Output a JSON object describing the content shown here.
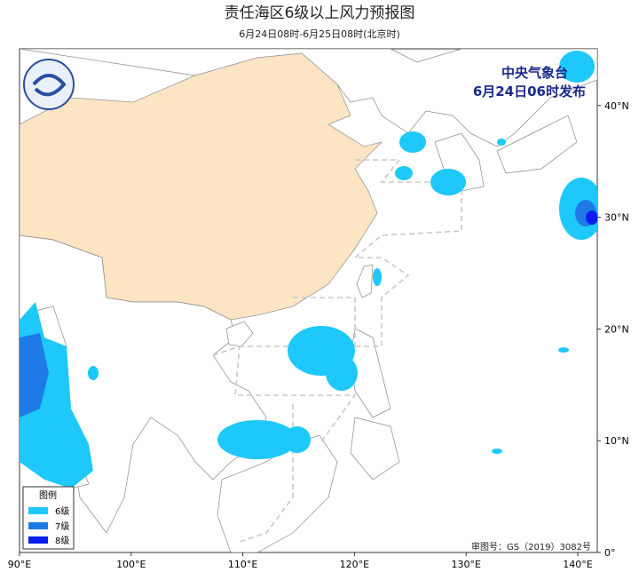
{
  "title": "责任海区6级以上风力预报图",
  "subtitle": "6月24日08时-6月25日08时(北京时)",
  "agency": "中央气象台",
  "issued": "6月24日06时发布",
  "legend": {
    "title": "图例",
    "items": [
      "6级",
      "7级",
      "8级"
    ]
  },
  "axes": {
    "x_labels": [
      "90°E",
      "100°E",
      "110°E",
      "120°E",
      "130°E",
      "140°E"
    ],
    "y_labels": [
      "0°",
      "10°N",
      "20°N",
      "30°N",
      "40°N"
    ]
  },
  "approval": "审图号：GS（2019）3082号"
}
